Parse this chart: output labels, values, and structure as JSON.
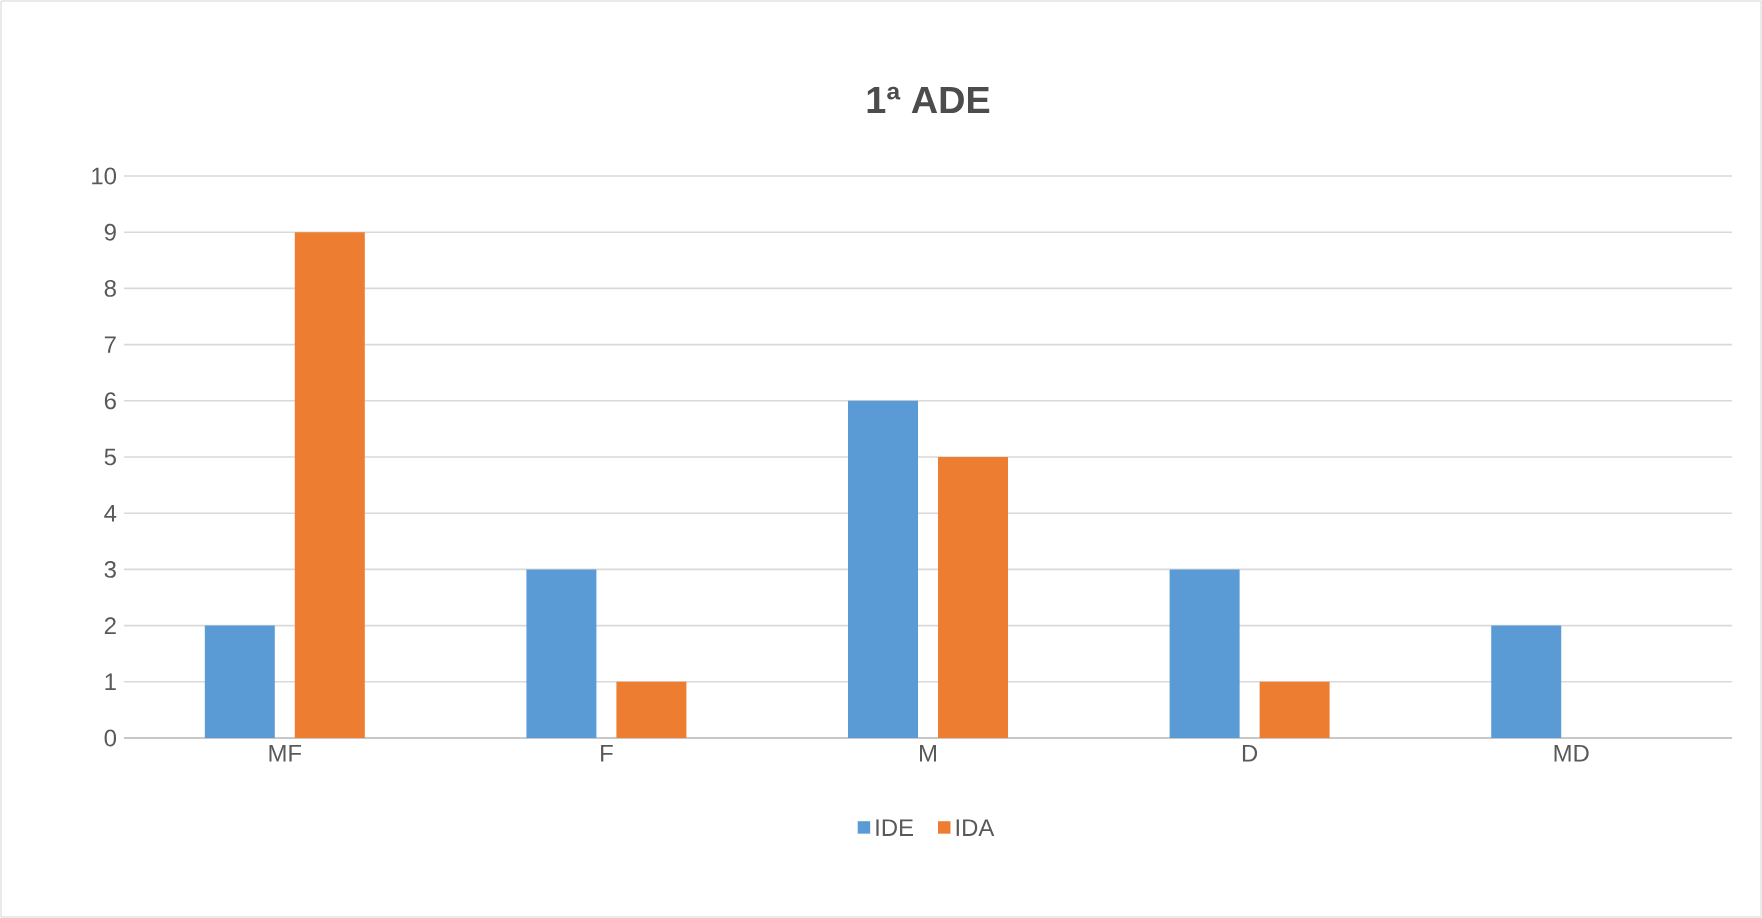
{
  "chart_data": {
    "type": "bar",
    "title": "1ª ADE",
    "categories": [
      "MF",
      "F",
      "M",
      "D",
      "MD"
    ],
    "series": [
      {
        "name": "IDE",
        "color": "#5b9bd5",
        "values": [
          2,
          3,
          6,
          3,
          2
        ]
      },
      {
        "name": "IDA",
        "color": "#ed7d31",
        "values": [
          9,
          1,
          5,
          1,
          0
        ]
      }
    ],
    "ylim": [
      0,
      10
    ],
    "yticks": [
      0,
      1,
      2,
      3,
      4,
      5,
      6,
      7,
      8,
      9,
      10
    ],
    "grid": "y",
    "legend": "bottom"
  }
}
